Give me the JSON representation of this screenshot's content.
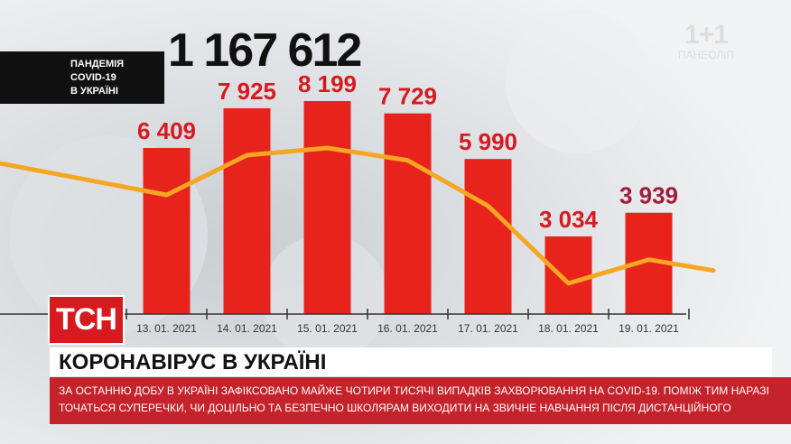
{
  "header": {
    "total": "1 167 612",
    "label_lines": [
      "ПАНДЕМІЯ",
      "COVID-19",
      "В УКРАЇНІ"
    ]
  },
  "watermark": {
    "brand": "1+1",
    "subtitle": "ПАНЕОЛІП"
  },
  "logo": {
    "text": "ТСН"
  },
  "headline": "КОРОНАВІРУС В УКРАЇНІ",
  "ticker": "ЗА ОСТАННЮ ДОБУ В УКРАЇНІ ЗАФІКСОВАНО МАЙЖЕ ЧОТИРИ ТИСЯЧІ ВИПАДКІВ ЗАХВОРЮВАННЯ НА COVID-19. ПОМІЖ ТИМ НАРАЗІ ТОЧАТЬСЯ СУПЕРЕЧКИ, ЧИ ДОЦІЛЬНО ТА БЕЗПЕЧНО ШКОЛЯРАМ ВИХОДИТИ НА ЗВИЧНЕ НАВЧАННЯ ПІСЛЯ ДИСТАНЦІЙНОГО",
  "colors": {
    "bar": "#e8231c",
    "line": "#f5a623",
    "value_text": "#d71920",
    "value_text_last": "#a01d3c",
    "logo": "#d71920",
    "ticker": "#c5232b"
  },
  "chart_data": {
    "type": "bar",
    "categories": [
      "13. 01. 2021",
      "14. 01. 2021",
      "15. 01. 2021",
      "16. 01. 2021",
      "17. 01. 2021",
      "18. 01. 2021",
      "19. 01. 2021"
    ],
    "values": [
      6409,
      7925,
      8199,
      7729,
      5990,
      3034,
      3939
    ],
    "value_labels": [
      "6 409",
      "7 925",
      "8 199",
      "7 729",
      "5 990",
      "3 034",
      "3 939"
    ],
    "title": "",
    "xlabel": "",
    "ylabel": "",
    "trend_line": true
  }
}
